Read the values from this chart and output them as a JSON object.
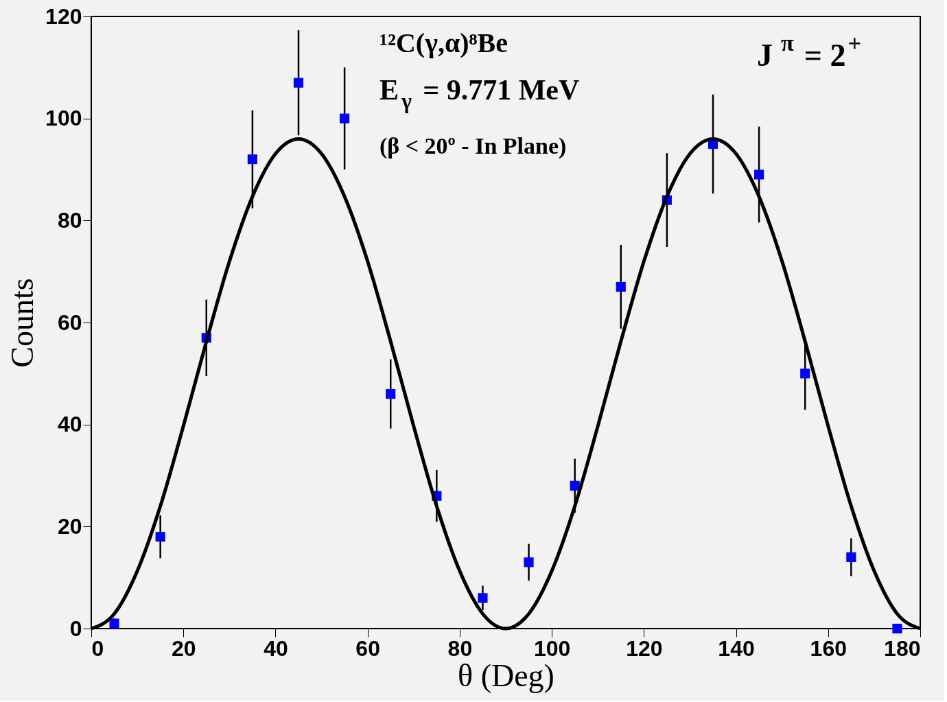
{
  "chart_data": {
    "type": "scatter",
    "xlabel": "θ (Deg)",
    "ylabel": "Counts",
    "x": [
      5,
      15,
      25,
      35,
      45,
      55,
      65,
      75,
      85,
      95,
      105,
      115,
      125,
      135,
      145,
      155,
      165,
      175
    ],
    "series": [
      {
        "color": "#0000ff",
        "marker": "square",
        "values": [
          1,
          18,
          57,
          92,
          107,
          100,
          46,
          26,
          6,
          13,
          28,
          67,
          84,
          95,
          89,
          50,
          14,
          0
        ],
        "errors": [
          1,
          4.2,
          7.5,
          9.6,
          10.3,
          10,
          6.8,
          5.1,
          2.4,
          3.6,
          5.3,
          8.2,
          9.2,
          9.7,
          9.4,
          7.1,
          3.7,
          null
        ]
      },
      {
        "type": "line",
        "color": "#000000",
        "line_style": "solid",
        "x": [
          0,
          5,
          10,
          15,
          20,
          25,
          30,
          35,
          40,
          45,
          50,
          55,
          60,
          65,
          70,
          75,
          80,
          85,
          90,
          95,
          100,
          105,
          110,
          115,
          120,
          125,
          130,
          135,
          140,
          145,
          150,
          155,
          160,
          165,
          170,
          175,
          180
        ],
        "values": [
          0,
          2.9,
          11.3,
          24,
          39.7,
          56.3,
          72,
          84.7,
          93.1,
          96,
          93.1,
          84.7,
          72,
          56.3,
          39.7,
          24,
          11.3,
          2.9,
          0,
          2.9,
          11.3,
          24,
          39.7,
          56.3,
          72,
          84.7,
          93.1,
          96,
          93.1,
          84.7,
          72,
          56.3,
          39.7,
          24,
          11.3,
          2.9,
          0
        ]
      }
    ],
    "annotations": [
      "¹²C(γ,α)⁸Be",
      "E$_{γ}$ = 9.771 MeV",
      "(β < 20º - In Plane)",
      "J$^{π}$ = 2$^{+}$"
    ],
    "xlim": [
      0,
      180
    ],
    "xticks": [
      0,
      20,
      40,
      60,
      80,
      100,
      120,
      140,
      160,
      180
    ],
    "ylim": [
      0,
      120
    ],
    "yticks": [
      0,
      20,
      40,
      60,
      80,
      100,
      120
    ],
    "grid": false
  }
}
